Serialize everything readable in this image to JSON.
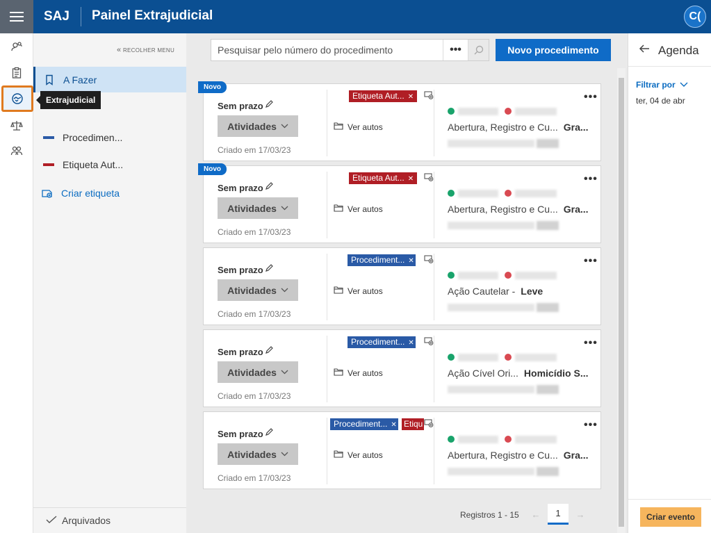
{
  "app": {
    "brand": "SAJ",
    "title": "Painel Extrajudicial",
    "avatar": "C("
  },
  "tooltip": "Extrajudicial",
  "sidebar": {
    "collapse": "RECOLHER MENU",
    "todo": "A Fazer",
    "proc": "Procedimen...",
    "etq": "Etiqueta Aut...",
    "create": "Criar etiqueta",
    "archived": "Arquivados",
    "colors": {
      "proc": "#2a5aa6",
      "etq": "#b01e25"
    }
  },
  "search": {
    "placeholder": "Pesquisar pelo número do procedimento",
    "more": "•••"
  },
  "new_button": "Novo procedimento",
  "cards": [
    {
      "badge": "Novo",
      "deadline": "Sem prazo",
      "activities": "Atividades",
      "created": "Criado em 17/03/23",
      "tag1": "Etiqueta Aut...",
      "tag2": "",
      "view": "Ver autos",
      "case": "Abertura, Registro e Cu...",
      "case2": "Gra...",
      "menu": "•••"
    },
    {
      "badge": "Novo",
      "deadline": "Sem prazo",
      "activities": "Atividades",
      "created": "Criado em 17/03/23",
      "tag1": "Etiqueta Aut...",
      "tag2": "",
      "view": "Ver autos",
      "case": "Abertura, Registro e Cu...",
      "case2": "Gra...",
      "menu": "•••"
    },
    {
      "badge": "",
      "deadline": "Sem prazo",
      "activities": "Atividades",
      "created": "Criado em 17/03/23",
      "tag1": "Procediment...",
      "tag2": "",
      "view": "Ver autos",
      "case": "Ação Cautelar - ",
      "case2": "Leve",
      "menu": "•••"
    },
    {
      "badge": "",
      "deadline": "Sem prazo",
      "activities": "Atividades",
      "created": "Criado em 17/03/23",
      "tag1": "Procediment...",
      "tag2": "",
      "view": "Ver autos",
      "case": "Ação Cível Ori...",
      "case2": "Homicídio S...",
      "menu": "•••"
    },
    {
      "badge": "",
      "deadline": "Sem prazo",
      "activities": "Atividades",
      "created": "Criado em 17/03/23",
      "tag1": "Procediment...",
      "tag2": "Etiqu",
      "view": "Ver autos",
      "case": "Abertura, Registro e Cu...",
      "case2": "Gra...",
      "menu": "•••"
    }
  ],
  "pager": {
    "label": "Registros 1 - 15",
    "current": "1",
    "prev": "←",
    "next": "→"
  },
  "agenda": {
    "title": "Agenda",
    "filter": "Filtrar por",
    "date": "ter, 04 de abr",
    "create": "Criar evento"
  }
}
